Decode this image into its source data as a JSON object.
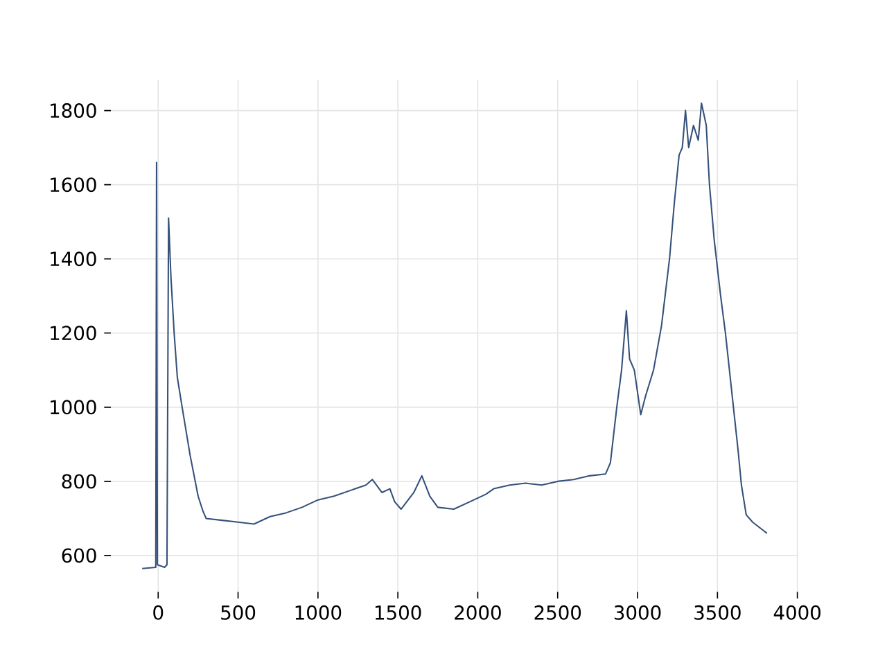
{
  "chart_data": {
    "type": "line",
    "grid": true,
    "marker": "none",
    "line_style": "solid",
    "xlim": [
      -296,
      4006
    ],
    "ylim": [
      502,
      1883
    ],
    "xticks": [
      0,
      500,
      1000,
      1500,
      2000,
      2500,
      3000,
      3500,
      4000
    ],
    "yticks": [
      600,
      800,
      1000,
      1200,
      1400,
      1600,
      1800
    ],
    "x": [
      -100,
      -15,
      -10,
      -5,
      40,
      55,
      65,
      80,
      100,
      120,
      150,
      200,
      250,
      280,
      300,
      400,
      500,
      600,
      700,
      800,
      900,
      1000,
      1100,
      1200,
      1300,
      1340,
      1400,
      1450,
      1480,
      1520,
      1600,
      1650,
      1700,
      1750,
      1850,
      1950,
      2050,
      2100,
      2200,
      2300,
      2400,
      2500,
      2600,
      2700,
      2800,
      2830,
      2870,
      2900,
      2930,
      2950,
      2980,
      3020,
      3050,
      3100,
      3150,
      3200,
      3230,
      3260,
      3280,
      3300,
      3320,
      3350,
      3380,
      3400,
      3430,
      3450,
      3480,
      3520,
      3550,
      3600,
      3630,
      3650,
      3680,
      3720,
      3780,
      3810
    ],
    "series": [
      {
        "color": "#35517a",
        "values": [
          565,
          568,
          1660,
          575,
          568,
          575,
          1510,
          1350,
          1200,
          1080,
          1000,
          870,
          760,
          720,
          700,
          695,
          690,
          685,
          705,
          715,
          730,
          750,
          760,
          775,
          790,
          805,
          770,
          780,
          745,
          725,
          770,
          815,
          760,
          730,
          725,
          745,
          765,
          780,
          790,
          795,
          790,
          800,
          805,
          815,
          820,
          850,
          1000,
          1100,
          1260,
          1130,
          1100,
          980,
          1030,
          1100,
          1220,
          1400,
          1550,
          1680,
          1700,
          1800,
          1700,
          1760,
          1720,
          1820,
          1760,
          1600,
          1450,
          1300,
          1200,
          1000,
          880,
          790,
          710,
          690,
          670,
          660
        ]
      }
    ]
  }
}
